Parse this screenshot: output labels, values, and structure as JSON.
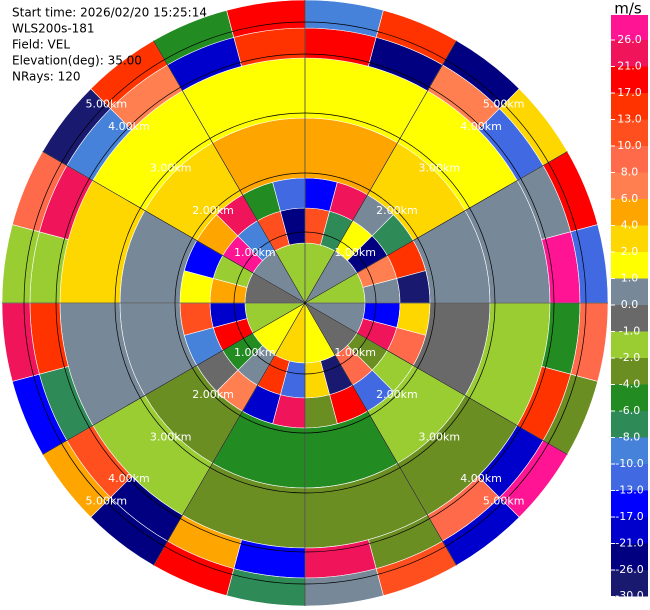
{
  "chart_data": {
    "type": "ppi",
    "info": [
      "Start time: 2026/02/20 15:25:14",
      "WLS200s-181",
      "Field: VEL",
      "Elevation(deg): 35.00",
      "NRays: 120"
    ],
    "range_labels": [
      "1.00km",
      "2.00km",
      "3.00km",
      "4.00km",
      "5.00km"
    ],
    "colorbar": {
      "label": "m/s",
      "ticks": [
        {
          "value": 26,
          "label": "26.0"
        },
        {
          "value": 21,
          "label": "21.0"
        },
        {
          "value": 17,
          "label": "17.0"
        },
        {
          "value": 13,
          "label": "13.0"
        },
        {
          "value": 10,
          "label": "10.0"
        },
        {
          "value": 8,
          "label": "8.0"
        },
        {
          "value": 6,
          "label": "6.0"
        },
        {
          "value": 4,
          "label": "4.0"
        },
        {
          "value": 2,
          "label": "2.0"
        },
        {
          "value": 1,
          "label": "1.0"
        },
        {
          "value": 0,
          "label": "0.0"
        },
        {
          "value": -1,
          "label": "-1.0"
        },
        {
          "value": -2,
          "label": "-2.0"
        },
        {
          "value": -4,
          "label": "-4.0"
        },
        {
          "value": -6,
          "label": "-6.0"
        },
        {
          "value": -8,
          "label": "-8.0"
        },
        {
          "value": -10,
          "label": "-10.0"
        },
        {
          "value": -13,
          "label": "-13.0"
        },
        {
          "value": -17,
          "label": "-17.0"
        },
        {
          "value": -21,
          "label": "-21.0"
        },
        {
          "value": -26,
          "label": "-26.0"
        },
        {
          "value": -30,
          "label": "-30.0"
        }
      ],
      "colors": [
        "#ff1493",
        "#f0145a",
        "#ff0000",
        "#ff3300",
        "#ff4f1f",
        "#ff6a4a",
        "#ff7f50",
        "#ffa500",
        "#ffd700",
        "#ffff00",
        "#778899",
        "#696969",
        "#9acd32",
        "#6b8e23",
        "#228b22",
        "#2e8b57",
        "#4682d9",
        "#4169e1",
        "#0000ff",
        "#0000cd",
        "#000080",
        "#191970"
      ]
    },
    "rings": [
      {
        "values": [
          -1.5,
          0.5,
          -1.5,
          0.5,
          -0.5,
          1.5,
          3,
          1.5,
          -1.5,
          -0.5,
          0.5,
          -1.5
        ]
      },
      {
        "values": [
          12,
          -8,
          1.5,
          -22,
          7,
          0.5,
          -15,
          24,
          -3,
          9,
          -27,
          3,
          -11,
          15,
          0.5,
          -5,
          19,
          -19,
          5,
          -1.5,
          28,
          -9,
          11,
          -24
        ]
      },
      {
        "values": [
          -15,
          22,
          0.5,
          -7,
          14,
          -28,
          3,
          9,
          -1.5,
          -12,
          18,
          -4,
          25,
          -20,
          7,
          -0.5,
          -9,
          12,
          1.5,
          -17,
          5,
          23,
          -6,
          -13
        ]
      },
      {
        "values": [
          5,
          3,
          0.5,
          -0.5,
          -1.5,
          -5,
          -5,
          -3,
          0.5,
          0.5,
          3,
          5
        ]
      },
      {
        "values": [
          1.5,
          1.5,
          0.5,
          -1.5,
          -3,
          -3,
          -3,
          -1.5,
          0.5,
          3,
          1.5,
          1.5
        ]
      },
      {
        "values": [
          19,
          -23,
          7,
          -11,
          0.5,
          27,
          -5,
          14,
          -18,
          9,
          -2.5,
          22,
          -14,
          4,
          -26,
          11,
          -7,
          16,
          -1.5,
          24,
          -10,
          6,
          -20,
          13
        ]
      },
      {
        "values": [
          -9,
          15,
          -25,
          3,
          20,
          -13,
          8,
          -3,
          28,
          -19,
          12,
          0.5,
          -7,
          17,
          -22,
          5,
          -15,
          23,
          -1.5,
          9,
          -27,
          14,
          -5,
          18
        ]
      }
    ]
  }
}
